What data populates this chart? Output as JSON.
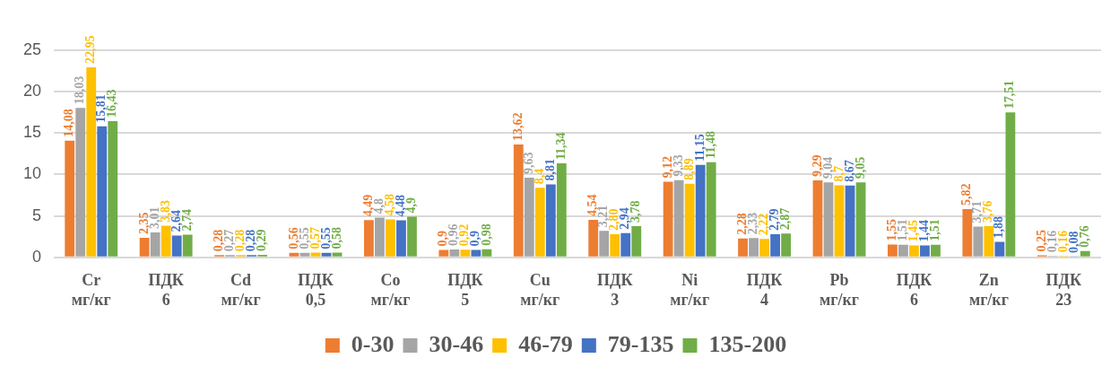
{
  "chart_data": {
    "type": "bar",
    "categories": [
      "Cr\nмг/кг",
      "ПДК\n6",
      "Cd\nмг/кг",
      "ПДК\n0,5",
      "Co\nмг/кг",
      "ПДК\n5",
      "Cu\nмг/кг",
      "ПДК\n3",
      "Ni\nмг/кг",
      "ПДК\n4",
      "Pb\nмг/кг",
      "ПДК\n6",
      "Zn\nмг/кг",
      "ПДК\n23"
    ],
    "series": [
      {
        "name": "0-30",
        "color": "#ed7d31",
        "values": [
          14.08,
          2.35,
          0.28,
          0.56,
          4.49,
          0.9,
          13.62,
          4.54,
          9.12,
          2.28,
          9.29,
          1.55,
          5.82,
          0.25
        ],
        "value_labels": [
          "14,08",
          "2,35",
          "0,28",
          "0,56",
          "4,49",
          "0,9",
          "13,62",
          "4,54",
          "9,12",
          "2,28",
          "9,29",
          "1,55",
          "5,82",
          "0,25"
        ]
      },
      {
        "name": "30-46",
        "color": "#a5a5a5",
        "values": [
          18.03,
          3.01,
          0.27,
          0.55,
          4.8,
          0.96,
          9.63,
          3.21,
          9.33,
          2.33,
          9.04,
          1.51,
          3.71,
          0.16
        ],
        "value_labels": [
          "18,03",
          "3,01",
          "0,27",
          "0,55",
          "4,8",
          "0,96",
          "9,63",
          "3,21",
          "9,33",
          "2,33",
          "9,04",
          "1,51",
          "3,71",
          "0,16"
        ]
      },
      {
        "name": "46-79",
        "color": "#ffc000",
        "values": [
          22.95,
          3.83,
          0.28,
          0.57,
          4.58,
          0.92,
          8.4,
          2.8,
          8.89,
          2.22,
          8.7,
          1.45,
          3.76,
          0.16
        ],
        "value_labels": [
          "22,95",
          "3,83",
          "0,28",
          "0,57",
          "4,58",
          "0,92",
          "8,4",
          "2,80",
          "8,89",
          "2,22",
          "8,7",
          "1,45",
          "3,76",
          "0,16"
        ]
      },
      {
        "name": "79-135",
        "color": "#4472c4",
        "values": [
          15.81,
          2.64,
          0.28,
          0.55,
          4.48,
          0.9,
          8.81,
          2.94,
          11.15,
          2.79,
          8.67,
          1.44,
          1.88,
          0.08
        ],
        "value_labels": [
          "15,81",
          "2,64",
          "0,28",
          "0,55",
          "4,48",
          "0,9",
          "8,81",
          "2,94",
          "11,15",
          "2,79",
          "8,67",
          "1,44",
          "1,88",
          "0,08"
        ]
      },
      {
        "name": "135-200",
        "color": "#70ad47",
        "values": [
          16.43,
          2.74,
          0.29,
          0.58,
          4.9,
          0.98,
          11.34,
          3.78,
          11.48,
          2.87,
          9.05,
          1.51,
          17.51,
          0.76
        ],
        "value_labels": [
          "16,43",
          "2,74",
          "0,29",
          "0,58",
          "4,9",
          "0,98",
          "11,34",
          "3,78",
          "11,48",
          "2,87",
          "9,05",
          "1,51",
          "17,51",
          "0,76"
        ]
      }
    ],
    "ylim": [
      0,
      25
    ],
    "yticks": [
      0,
      5,
      10,
      15,
      20,
      25
    ],
    "grid": "y",
    "legend": "bottom"
  }
}
